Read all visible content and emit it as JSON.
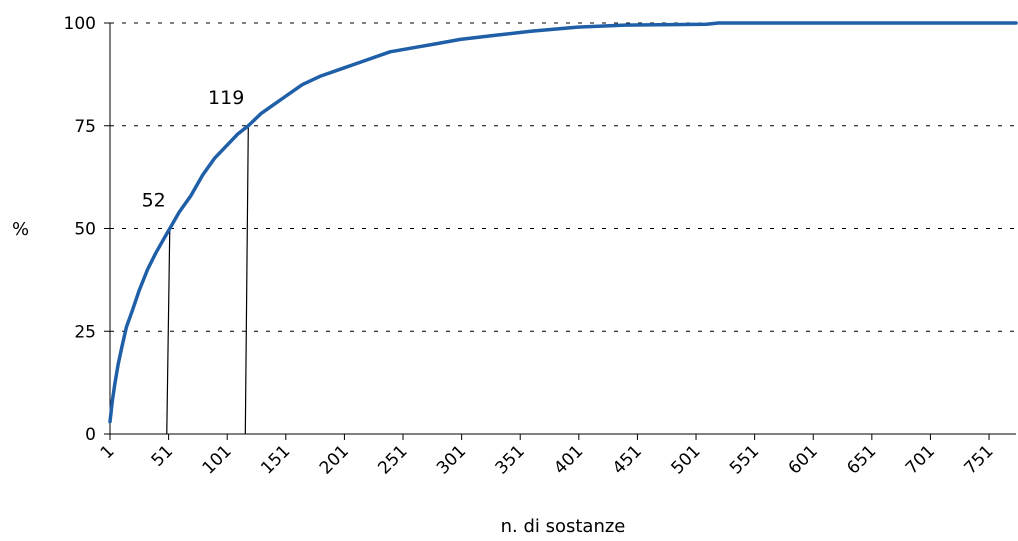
{
  "chart_data": {
    "type": "line",
    "title": "",
    "xlabel": "n. di sostanze",
    "ylabel": "%",
    "xlim": [
      1,
      774
    ],
    "ylim": [
      0,
      100
    ],
    "x_ticks": [
      1,
      51,
      101,
      151,
      201,
      251,
      301,
      351,
      401,
      451,
      501,
      551,
      601,
      651,
      701,
      751
    ],
    "x_tick_labels": [
      "1",
      "51",
      "101",
      "151",
      "201",
      "251",
      "301",
      "351",
      "401",
      "451",
      "501",
      "551",
      "601",
      "651",
      "701",
      "751"
    ],
    "y_ticks": [
      0,
      25,
      50,
      75,
      100
    ],
    "y_tick_labels": [
      "0",
      "25",
      "50",
      "75",
      "100"
    ],
    "grid": "horizontal dashed",
    "line_color": "#1f5fa8",
    "series": [
      {
        "x": [
          1,
          3,
          5,
          8,
          11,
          15,
          20,
          26,
          33,
          40,
          46,
          52,
          60,
          70,
          80,
          90,
          100,
          110,
          119,
          130,
          140,
          150,
          165,
          180,
          200,
          220,
          240,
          260,
          280,
          300,
          330,
          360,
          400,
          440,
          480,
          510,
          520,
          774
        ],
        "values": [
          3,
          8,
          12,
          17,
          21,
          26,
          30,
          35,
          40,
          44,
          47,
          50,
          54,
          58,
          63,
          67,
          70,
          73,
          75,
          78,
          80,
          82,
          85,
          87,
          89,
          91,
          93,
          94,
          95,
          96,
          97,
          98,
          99,
          99.5,
          99.6,
          99.7,
          100,
          100
        ]
      }
    ],
    "markers": [
      {
        "label": "52",
        "x": 52,
        "y": 50
      },
      {
        "label": "119",
        "x": 119,
        "y": 75
      }
    ]
  }
}
